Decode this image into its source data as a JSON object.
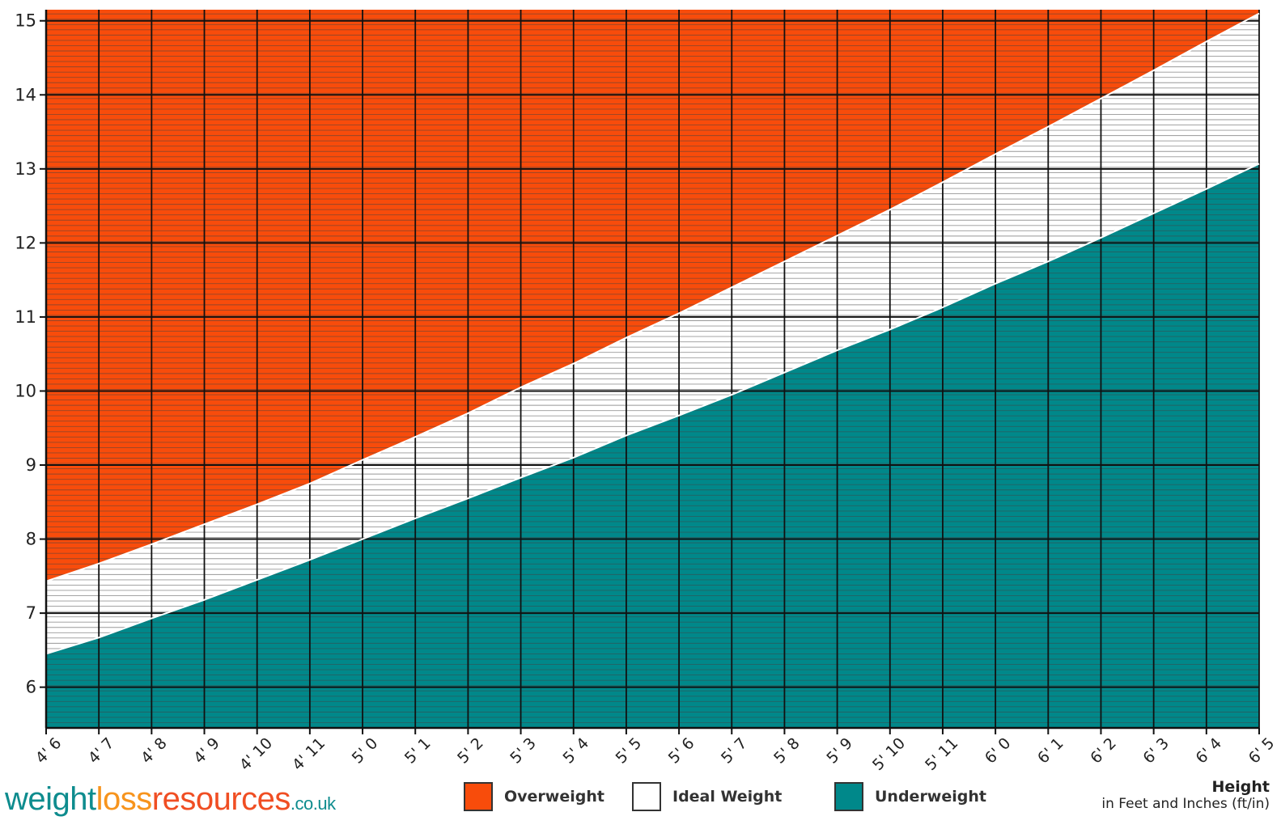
{
  "chart_data": {
    "type": "area",
    "title": "",
    "x": [
      "4' 6",
      "4' 7",
      "4' 8",
      "4' 9",
      "4' 10",
      "4' 11",
      "5' 0",
      "5' 1",
      "5' 2",
      "5' 3",
      "5' 4",
      "5' 5",
      "5' 6",
      "5' 7",
      "5' 8",
      "5' 9",
      "5' 10",
      "5' 11",
      "6' 0",
      "6' 1",
      "6' 2",
      "6' 3",
      "6' 4",
      "6' 5"
    ],
    "x_inches": [
      54,
      55,
      56,
      57,
      58,
      59,
      60,
      61,
      62,
      63,
      64,
      65,
      66,
      67,
      68,
      69,
      70,
      71,
      72,
      73,
      74,
      75,
      76,
      77
    ],
    "xlabel": "Height",
    "xlabel_sub": "in Feet and Inches (ft/in)",
    "y_ticks": [
      6,
      7,
      8,
      9,
      10,
      11,
      12,
      13,
      14,
      15
    ],
    "ylim": [
      5.45,
      15.15
    ],
    "grid": true,
    "series": [
      {
        "name": "Overweight",
        "color": "#f84c0b",
        "values_top": [
          15.15,
          15.15
        ]
      },
      {
        "name": "Ideal Weight",
        "color": "#ffffff",
        "upper": [
          7.43,
          7.67,
          7.93,
          8.2,
          8.47,
          8.75,
          9.07,
          9.38,
          9.7,
          10.05,
          10.37,
          10.72,
          11.05,
          11.4,
          11.75,
          12.1,
          12.45,
          12.82,
          13.2,
          13.57,
          13.95,
          14.33,
          14.72,
          15.1
        ]
      },
      {
        "name": "Underweight",
        "color": "#00888a",
        "upper": [
          6.45,
          6.67,
          6.93,
          7.18,
          7.45,
          7.72,
          8.0,
          8.28,
          8.55,
          8.83,
          9.1,
          9.4,
          9.67,
          9.95,
          10.25,
          10.55,
          10.83,
          11.13,
          11.45,
          11.75,
          12.07,
          12.4,
          12.73,
          13.07
        ]
      }
    ],
    "legend": [
      "Overweight",
      "Ideal Weight",
      "Underweight"
    ]
  },
  "legend": {
    "overweight": "Overweight",
    "ideal": "Ideal Weight",
    "underweight": "Underweight"
  },
  "logo": {
    "part1": "weight",
    "part2": "loss",
    "part3": "resources",
    "part4": ".co.uk",
    "colors": [
      "#0e8c8e",
      "#f7941d",
      "#f04e23",
      "#0e8c8e"
    ]
  },
  "axis": {
    "title": "Height",
    "subtitle": "in Feet and Inches (ft/in)"
  }
}
